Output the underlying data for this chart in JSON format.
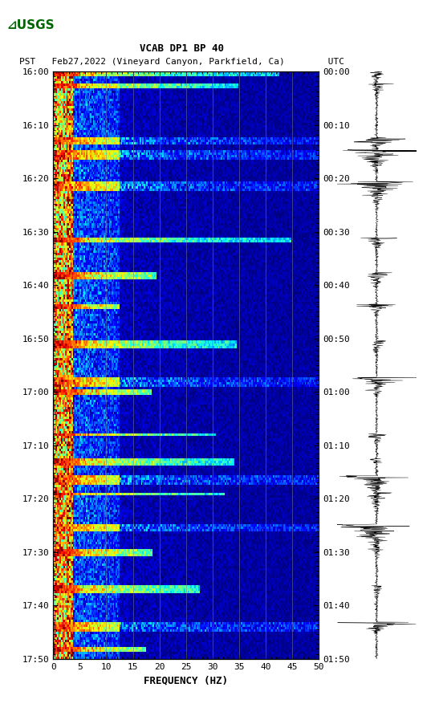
{
  "title_line1": "VCAB DP1 BP 40",
  "title_line2": "PST   Feb27,2022 (Vineyard Canyon, Parkfield, Ca)        UTC",
  "xlabel": "FREQUENCY (HZ)",
  "freq_min": 0,
  "freq_max": 50,
  "time_start_label": "16:00",
  "time_end_label": "17:50",
  "utc_start_label": "00:00",
  "utc_end_label": "01:50",
  "left_time_labels": [
    "16:00",
    "16:10",
    "16:20",
    "16:30",
    "16:40",
    "16:50",
    "17:00",
    "17:10",
    "17:20",
    "17:30",
    "17:40",
    "17:50"
  ],
  "right_time_labels": [
    "00:00",
    "00:10",
    "00:20",
    "00:30",
    "00:40",
    "00:50",
    "01:00",
    "01:10",
    "01:20",
    "01:30",
    "01:40",
    "01:50"
  ],
  "xtick_labels": [
    "0",
    "5",
    "10",
    "15",
    "20",
    "25",
    "30",
    "35",
    "40",
    "45",
    "50"
  ],
  "vline_freqs": [
    5,
    10,
    15,
    20,
    25,
    30,
    35,
    40,
    45
  ],
  "background_color": "#ffffff",
  "spectrogram_bg": "#000080",
  "fig_width": 5.52,
  "fig_height": 8.92,
  "usgs_logo_color": "#006600",
  "font_family": "monospace"
}
